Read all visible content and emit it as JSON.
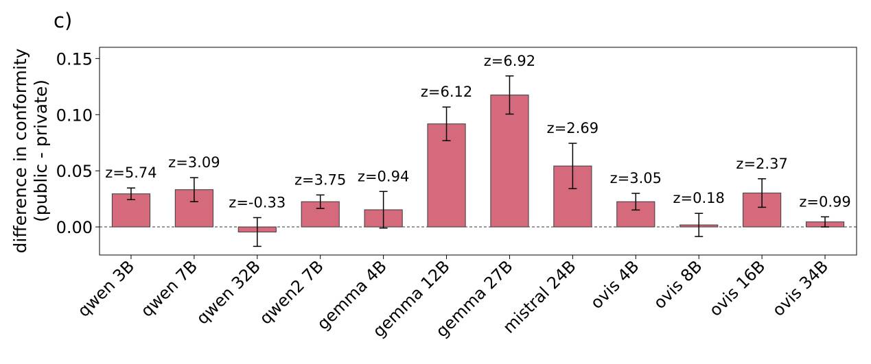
{
  "panel_label": "c)",
  "chart_data": {
    "type": "bar",
    "title": "",
    "xlabel": "",
    "ylabel": [
      "difference in conformity",
      "(public - private)"
    ],
    "ylim": [
      -0.025,
      0.16
    ],
    "yticks": [
      0.0,
      0.05,
      0.1,
      0.15
    ],
    "ytick_labels": [
      "0.00",
      "0.05",
      "0.10",
      "0.15"
    ],
    "reference_line": 0.0,
    "grid": false,
    "categories": [
      "qwen 3B",
      "qwen 7B",
      "qwen 32B",
      "qwen2 7B",
      "gemma 4B",
      "gemma 12B",
      "gemma 27B",
      "mistral 24B",
      "ovis 4B",
      "ovis 8B",
      "ovis 16B",
      "ovis 34B"
    ],
    "values": [
      0.0295,
      0.0332,
      -0.0045,
      0.0225,
      0.0153,
      0.0918,
      0.1175,
      0.0543,
      0.0225,
      0.0018,
      0.0302,
      0.0045
    ],
    "errors": [
      0.0052,
      0.0107,
      0.0128,
      0.006,
      0.0163,
      0.015,
      0.017,
      0.0202,
      0.0074,
      0.0103,
      0.0127,
      0.0045
    ],
    "annotations": [
      "z=5.74",
      "z=3.09",
      "z=-0.33",
      "z=3.75",
      "z=0.94",
      "z=6.12",
      "z=6.92",
      "z=2.69",
      "z=3.05",
      "z=0.18",
      "z=2.37",
      "z=0.99"
    ],
    "colors": {
      "bar_fill": "#d46a7c",
      "bar_edge": "#3a3a3a",
      "error_bar": "#000000",
      "zero_line": "#333333"
    }
  }
}
